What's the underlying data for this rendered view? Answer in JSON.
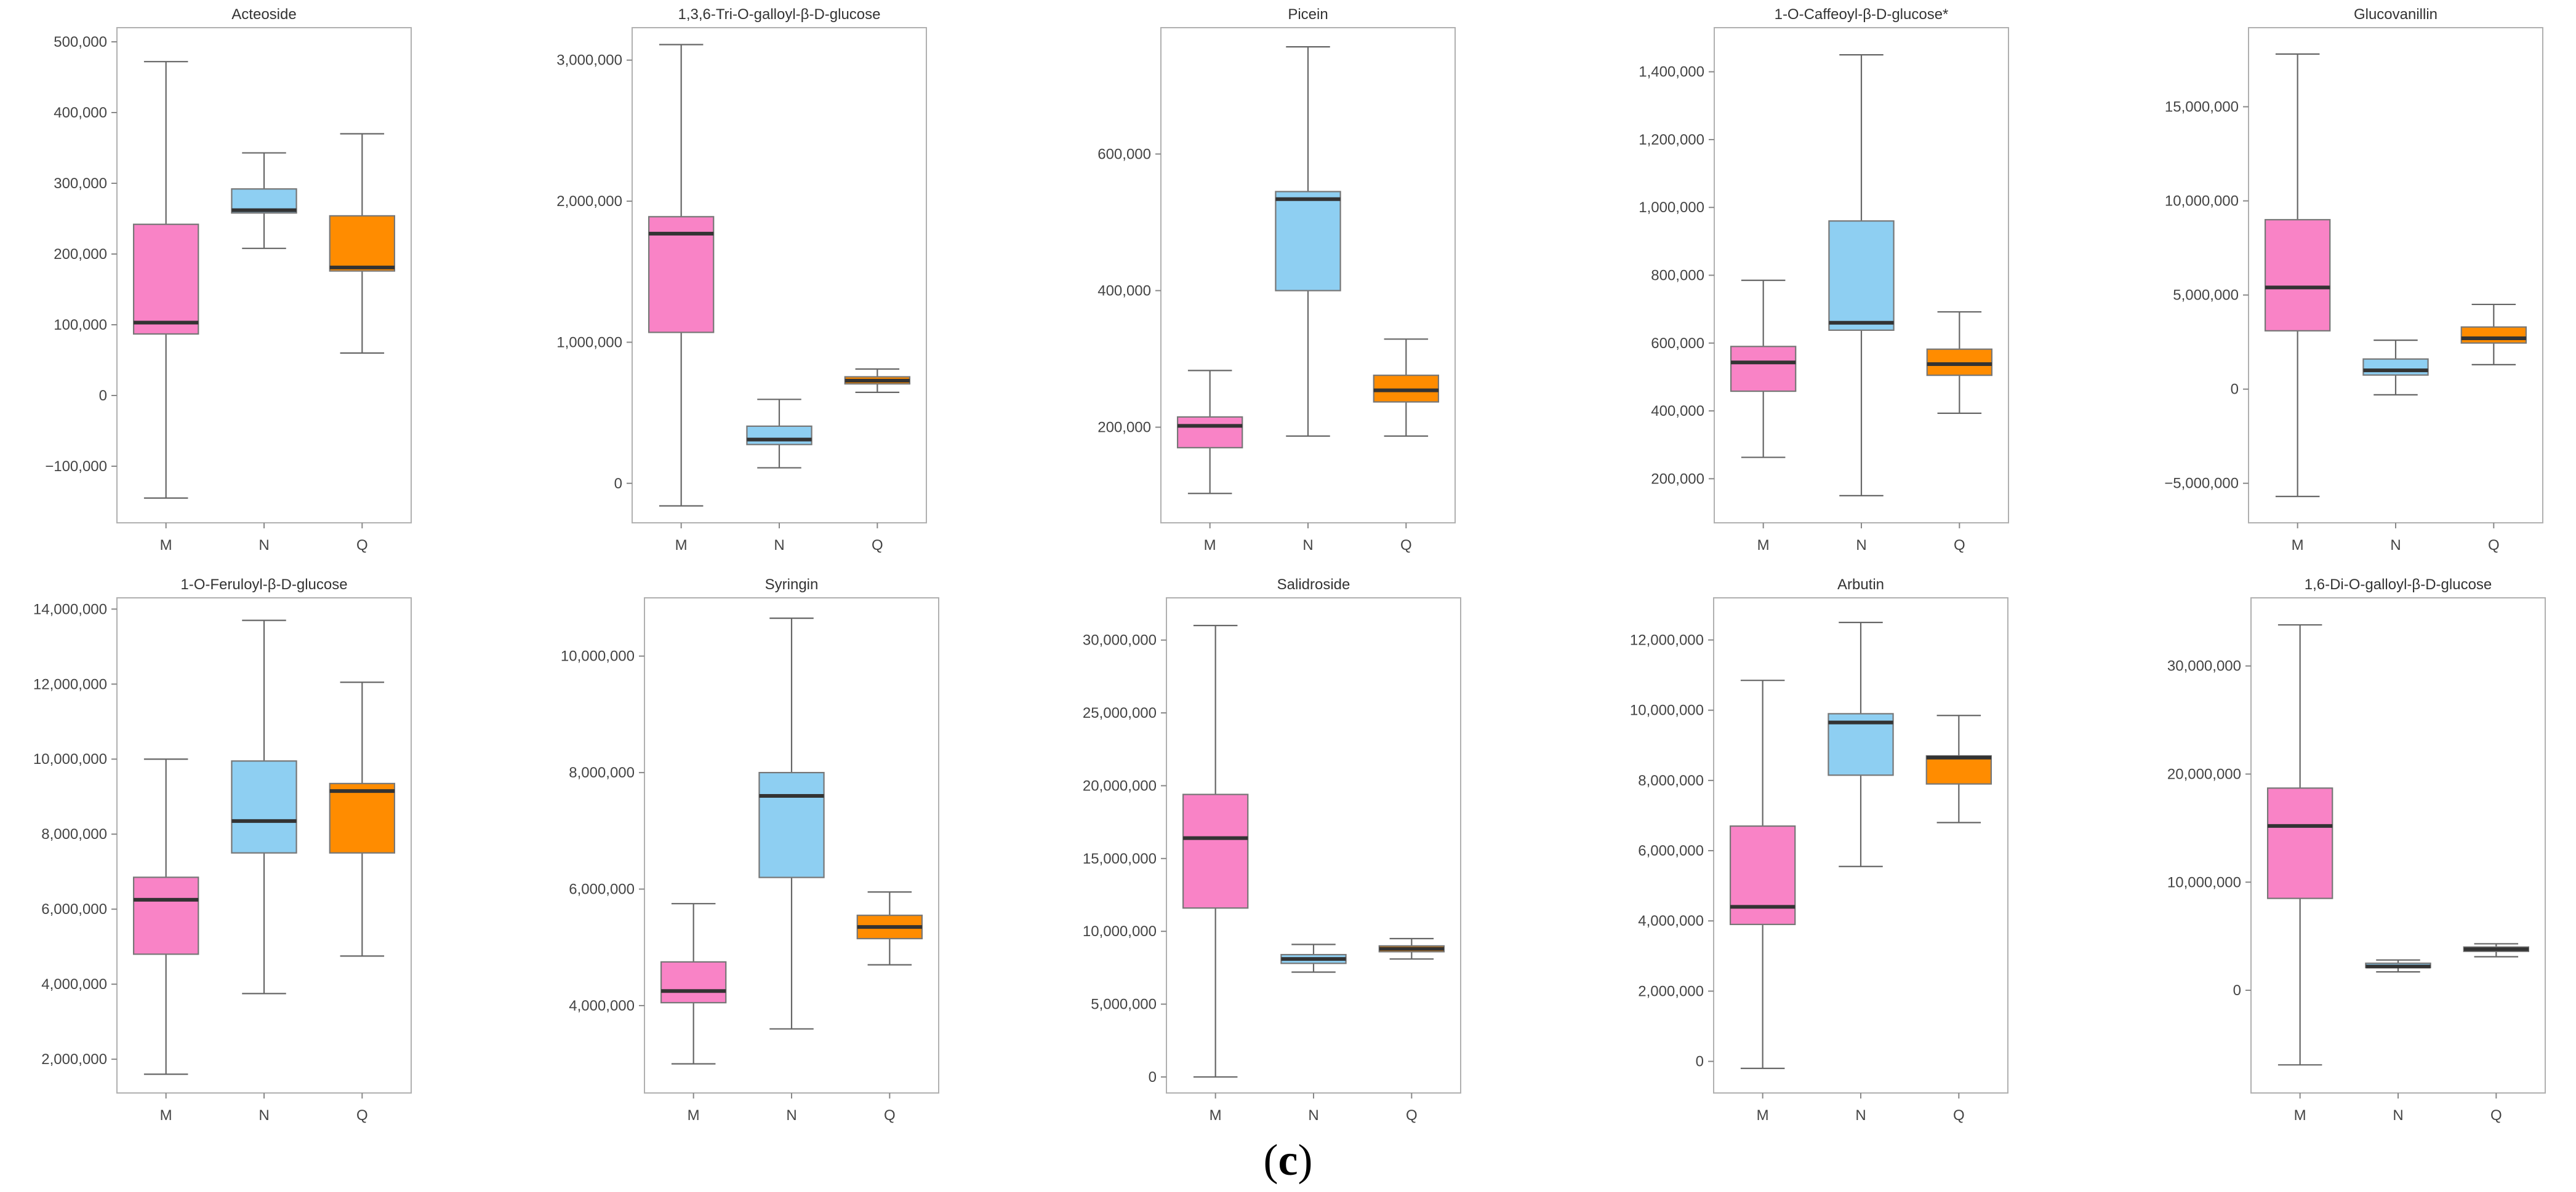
{
  "caption": {
    "open": "(",
    "letter": "c",
    "close": ")"
  },
  "colors": {
    "M": "#f983c6",
    "N": "#8ecff2",
    "Q": "#ff8c00"
  },
  "chart_data": [
    {
      "type": "boxplot",
      "title": "Acteoside",
      "categories": [
        "M",
        "N",
        "Q"
      ],
      "ylim": [
        -180000,
        520000
      ],
      "yticks": [
        -100000,
        0,
        100000,
        200000,
        300000,
        400000,
        500000
      ],
      "ytick_labels": [
        "−100,000",
        "0",
        "100,000",
        "200,000",
        "300,000",
        "400,000",
        "500,000"
      ],
      "boxes": [
        {
          "min": -145000,
          "q1": 87000,
          "median": 103000,
          "q3": 242000,
          "max": 472000
        },
        {
          "min": 208000,
          "q1": 258000,
          "median": 262000,
          "q3": 292000,
          "max": 343000
        },
        {
          "min": 60000,
          "q1": 176000,
          "median": 181000,
          "q3": 254000,
          "max": 370000
        }
      ]
    },
    {
      "type": "boxplot",
      "title": "1,3,6-Tri-O-galloyl-β-D-glucose",
      "categories": [
        "M",
        "N",
        "Q"
      ],
      "ylim": [
        -280000,
        3230000
      ],
      "yticks": [
        0,
        1000000,
        2000000,
        3000000
      ],
      "ytick_labels": [
        "0",
        "1,000,000",
        "2,000,000",
        "3,000,000"
      ],
      "boxes": [
        {
          "min": -160000,
          "q1": 1070000,
          "median": 1770000,
          "q3": 1890000,
          "max": 3110000
        },
        {
          "min": 110000,
          "q1": 275000,
          "median": 310000,
          "q3": 405000,
          "max": 595000
        },
        {
          "min": 645000,
          "q1": 705000,
          "median": 728000,
          "q3": 755000,
          "max": 810000
        }
      ]
    },
    {
      "type": "boxplot",
      "title": "Picein",
      "categories": [
        "M",
        "N",
        "Q"
      ],
      "ylim": [
        60000,
        785000
      ],
      "yticks": [
        200000,
        400000,
        600000
      ],
      "ytick_labels": [
        "200,000",
        "400,000",
        "600,000"
      ],
      "boxes": [
        {
          "min": 103000,
          "q1": 170000,
          "median": 202000,
          "q3": 215000,
          "max": 283000
        },
        {
          "min": 187000,
          "q1": 400000,
          "median": 534000,
          "q3": 545000,
          "max": 757000
        },
        {
          "min": 187000,
          "q1": 237000,
          "median": 254000,
          "q3": 276000,
          "max": 329000
        }
      ]
    },
    {
      "type": "boxplot",
      "title": "1-O-Caffeoyl-β-D-glucose*",
      "categories": [
        "M",
        "N",
        "Q"
      ],
      "ylim": [
        70000,
        1530000
      ],
      "yticks": [
        200000,
        400000,
        600000,
        800000,
        1000000,
        1200000,
        1400000
      ],
      "ytick_labels": [
        "200,000",
        "400,000",
        "600,000",
        "800,000",
        "1,000,000",
        "1,200,000",
        "1,400,000"
      ],
      "boxes": [
        {
          "min": 263000,
          "q1": 458000,
          "median": 543000,
          "q3": 590000,
          "max": 785000
        },
        {
          "min": 150000,
          "q1": 638000,
          "median": 660000,
          "q3": 960000,
          "max": 1450000
        },
        {
          "min": 393000,
          "q1": 505000,
          "median": 538000,
          "q3": 582000,
          "max": 692000
        }
      ]
    },
    {
      "type": "boxplot",
      "title": "Glucovanillin",
      "categories": [
        "M",
        "N",
        "Q"
      ],
      "ylim": [
        -7100000,
        19200000
      ],
      "yticks": [
        -5000000,
        0,
        5000000,
        10000000,
        15000000
      ],
      "ytick_labels": [
        "−5,000,000",
        "0",
        "5,000,000",
        "10,000,000",
        "15,000,000"
      ],
      "boxes": [
        {
          "min": -5700000,
          "q1": 3100000,
          "median": 5400000,
          "q3": 9000000,
          "max": 17800000
        },
        {
          "min": -300000,
          "q1": 750000,
          "median": 1000000,
          "q3": 1600000,
          "max": 2600000
        },
        {
          "min": 1300000,
          "q1": 2450000,
          "median": 2700000,
          "q3": 3300000,
          "max": 4500000
        }
      ]
    },
    {
      "type": "boxplot",
      "title": "1-O-Feruloyl-β-D-glucose",
      "categories": [
        "M",
        "N",
        "Q"
      ],
      "ylim": [
        1100000,
        14300000
      ],
      "yticks": [
        2000000,
        4000000,
        6000000,
        8000000,
        10000000,
        12000000,
        14000000
      ],
      "ytick_labels": [
        "2,000,000",
        "4,000,000",
        "6,000,000",
        "8,000,000",
        "10,000,000",
        "12,000,000",
        "14,000,000"
      ],
      "boxes": [
        {
          "min": 1600000,
          "q1": 4800000,
          "median": 6250000,
          "q3": 6850000,
          "max": 10000000
        },
        {
          "min": 3750000,
          "q1": 7500000,
          "median": 8350000,
          "q3": 9950000,
          "max": 13700000
        },
        {
          "min": 4750000,
          "q1": 7500000,
          "median": 9150000,
          "q3": 9350000,
          "max": 12050000
        }
      ]
    },
    {
      "type": "boxplot",
      "title": "Syringin",
      "categories": [
        "M",
        "N",
        "Q"
      ],
      "ylim": [
        2500000,
        11000000
      ],
      "yticks": [
        4000000,
        6000000,
        8000000,
        10000000
      ],
      "ytick_labels": [
        "4,000,000",
        "6,000,000",
        "8,000,000",
        "10,000,000"
      ],
      "boxes": [
        {
          "min": 3000000,
          "q1": 4050000,
          "median": 4250000,
          "q3": 4750000,
          "max": 5750000
        },
        {
          "min": 3600000,
          "q1": 6200000,
          "median": 7600000,
          "q3": 8000000,
          "max": 10650000
        },
        {
          "min": 4700000,
          "q1": 5150000,
          "median": 5350000,
          "q3": 5550000,
          "max": 5950000
        }
      ]
    },
    {
      "type": "boxplot",
      "title": "Salidroside",
      "categories": [
        "M",
        "N",
        "Q"
      ],
      "ylim": [
        -1100000,
        32900000
      ],
      "yticks": [
        0,
        5000000,
        10000000,
        15000000,
        20000000,
        25000000,
        30000000
      ],
      "ytick_labels": [
        "0",
        "5,000,000",
        "10,000,000",
        "15,000,000",
        "20,000,000",
        "25,000,000",
        "30,000,000"
      ],
      "boxes": [
        {
          "min": 0,
          "q1": 11600000,
          "median": 16400000,
          "q3": 19400000,
          "max": 31000000
        },
        {
          "min": 7200000,
          "q1": 7800000,
          "median": 8100000,
          "q3": 8400000,
          "max": 9100000
        },
        {
          "min": 8100000,
          "q1": 8600000,
          "median": 8800000,
          "q3": 9000000,
          "max": 9500000
        }
      ]
    },
    {
      "type": "boxplot",
      "title": "Arbutin",
      "categories": [
        "M",
        "N",
        "Q"
      ],
      "ylim": [
        -900000,
        13200000
      ],
      "yticks": [
        0,
        2000000,
        4000000,
        6000000,
        8000000,
        10000000,
        12000000
      ],
      "ytick_labels": [
        "0",
        "2,000,000",
        "4,000,000",
        "6,000,000",
        "8,000,000",
        "10,000,000",
        "12,000,000"
      ],
      "boxes": [
        {
          "min": -200000,
          "q1": 3900000,
          "median": 4400000,
          "q3": 6700000,
          "max": 10850000
        },
        {
          "min": 5550000,
          "q1": 8150000,
          "median": 9650000,
          "q3": 9900000,
          "max": 12500000
        },
        {
          "min": 6800000,
          "q1": 7900000,
          "median": 8650000,
          "q3": 8700000,
          "max": 9850000
        }
      ]
    },
    {
      "type": "boxplot",
      "title": "1,6-Di-O-galloyl-β-D-glucose",
      "categories": [
        "M",
        "N",
        "Q"
      ],
      "ylim": [
        -9500000,
        36300000
      ],
      "yticks": [
        0,
        10000000,
        20000000,
        30000000
      ],
      "ytick_labels": [
        "0",
        "10,000,000",
        "20,000,000",
        "30,000,000"
      ],
      "boxes": [
        {
          "min": -6900000,
          "q1": 8500000,
          "median": 15200000,
          "q3": 18700000,
          "max": 33800000
        },
        {
          "min": 1700000,
          "q1": 2100000,
          "median": 2200000,
          "q3": 2500000,
          "max": 2800000
        },
        {
          "min": 3100000,
          "q1": 3600000,
          "median": 3800000,
          "q3": 4000000,
          "max": 4300000
        }
      ]
    }
  ]
}
